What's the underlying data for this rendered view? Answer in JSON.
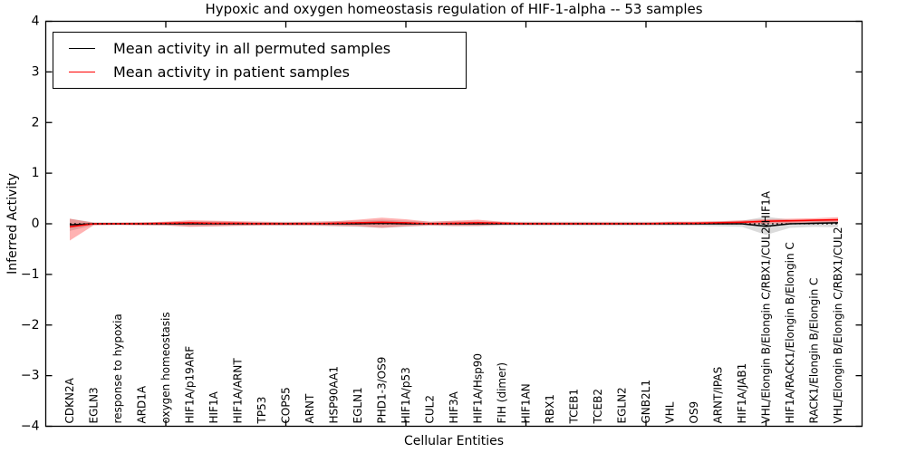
{
  "figure": {
    "title": "Hypoxic and oxygen homeostasis regulation of HIF-1-alpha -- 53 samples",
    "xlabel": "Cellular Entities",
    "ylabel": "Inferred Activity"
  },
  "legend": {
    "position": "upper-left",
    "entries": [
      {
        "label": "Mean activity in all permuted samples",
        "color": "#000000"
      },
      {
        "label": "Mean activity in patient samples",
        "color": "#ff0000"
      }
    ]
  },
  "chart_data": {
    "type": "line",
    "title": "Hypoxic and oxygen homeostasis regulation of HIF-1-alpha -- 53 samples",
    "xlabel": "Cellular Entities",
    "ylabel": "Inferred Activity",
    "ylim": [
      -4,
      4
    ],
    "yticks": [
      -4,
      -3,
      -2,
      -1,
      0,
      1,
      2,
      3,
      4
    ],
    "grid": false,
    "zero_line": {
      "y": 0,
      "style": "dotted",
      "color": "#000000"
    },
    "categories": [
      "CDKN2A",
      "EGLN3",
      "response to hypoxia",
      "ARD1A",
      "oxygen homeostasis",
      "HIF1A/p19ARF",
      "HIF1A",
      "HIF1A/ARNT",
      "TP53",
      "COPS5",
      "ARNT",
      "HSP90AA1",
      "EGLN1",
      "PHD1-3/OS9",
      "HIF1A/p53",
      "CUL2",
      "HIF3A",
      "HIF1A/Hsp90",
      "FIH (dimer)",
      "HIF1AN",
      "RBX1",
      "TCEB1",
      "TCEB2",
      "EGLN2",
      "GNB2L1",
      "VHL",
      "OS9",
      "ARNT/IPAS",
      "HIF1A/JAB1",
      "VHL/Elongin B/Elongin C/RBX1/CUL2/HIF1A",
      "HIF1A/RACK1/Elongin B/Elongin C",
      "RACK1/Elongin B/Elongin C",
      "VHL/Elongin B/Elongin C/RBX1/CUL2"
    ],
    "series": [
      {
        "name": "Mean activity in all permuted samples",
        "color": "#000000",
        "values": [
          -0.02,
          0,
          0,
          0,
          0,
          0,
          0,
          0,
          0,
          0,
          0,
          0,
          0,
          0.01,
          0,
          0,
          0,
          0,
          0,
          0,
          0,
          0,
          0,
          0,
          0,
          0,
          0,
          0,
          0,
          -0.05,
          0,
          0.01,
          0.02
        ]
      },
      {
        "name": "Mean activity in patient samples",
        "color": "#ff0000",
        "values": [
          -0.06,
          0,
          0,
          0,
          0.01,
          0.02,
          0.01,
          0.01,
          0,
          0,
          0,
          0.01,
          0.02,
          0.03,
          0.02,
          0,
          0.01,
          0.02,
          0.01,
          0,
          0,
          0,
          0,
          0,
          0,
          0.01,
          0.01,
          0.02,
          0.03,
          0.05,
          0.06,
          0.07,
          0.08
        ]
      }
    ],
    "bands": [
      {
        "name": "permuted-samples-spread",
        "color": "#999999",
        "opacity": 0.35,
        "upper": [
          0.1,
          0.03,
          0.03,
          0.03,
          0.04,
          0.05,
          0.05,
          0.04,
          0.04,
          0.04,
          0.04,
          0.05,
          0.06,
          0.08,
          0.06,
          0.04,
          0.05,
          0.05,
          0.04,
          0.04,
          0.04,
          0.04,
          0.04,
          0.04,
          0.04,
          0.04,
          0.04,
          0.05,
          0.06,
          0.14,
          0.08,
          0.06,
          0.07
        ],
        "lower": [
          -0.14,
          -0.03,
          -0.03,
          -0.03,
          -0.04,
          -0.05,
          -0.05,
          -0.04,
          -0.04,
          -0.04,
          -0.04,
          -0.05,
          -0.06,
          -0.08,
          -0.06,
          -0.04,
          -0.05,
          -0.05,
          -0.04,
          -0.04,
          -0.04,
          -0.04,
          -0.04,
          -0.04,
          -0.04,
          -0.04,
          -0.04,
          -0.05,
          -0.06,
          -0.22,
          -0.08,
          -0.06,
          -0.07
        ]
      },
      {
        "name": "patient-samples-spread",
        "color": "#ff0000",
        "opacity": 0.3,
        "upper": [
          0.1,
          0.02,
          0.02,
          0.03,
          0.04,
          0.07,
          0.06,
          0.05,
          0.04,
          0.03,
          0.04,
          0.05,
          0.08,
          0.12,
          0.09,
          0.04,
          0.06,
          0.08,
          0.04,
          0.03,
          0.03,
          0.03,
          0.03,
          0.03,
          0.03,
          0.04,
          0.04,
          0.05,
          0.07,
          0.09,
          0.1,
          0.11,
          0.13
        ],
        "lower": [
          -0.33,
          -0.03,
          -0.02,
          -0.03,
          -0.03,
          -0.06,
          -0.05,
          -0.04,
          -0.03,
          -0.03,
          -0.03,
          -0.04,
          -0.05,
          -0.08,
          -0.05,
          -0.03,
          -0.04,
          -0.04,
          -0.02,
          -0.02,
          -0.02,
          -0.02,
          -0.02,
          -0.02,
          -0.02,
          -0.02,
          -0.02,
          -0.01,
          -0.01,
          0.0,
          0.01,
          0.03,
          0.03
        ]
      }
    ],
    "x_major_tick_indices": [
      4,
      9,
      14,
      19,
      24,
      29
    ]
  }
}
